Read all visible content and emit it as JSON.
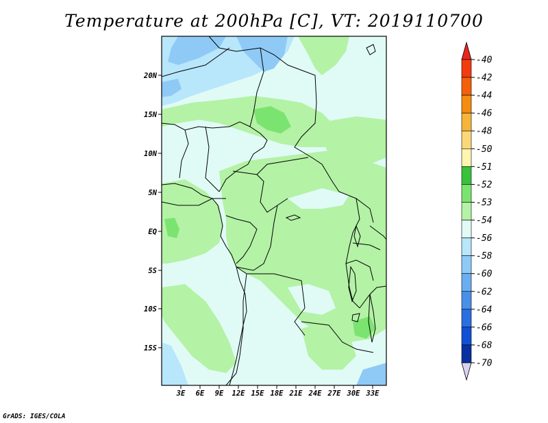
{
  "title": "Temperature at 200hPa [C], VT: 2019110700",
  "credit": "GrADS: IGES/COLA",
  "map": {
    "lat_labels": [
      "20N",
      "15N",
      "10N",
      "5N",
      "EQ",
      "5S",
      "10S",
      "15S"
    ],
    "lon_labels": [
      "3E",
      "6E",
      "9E",
      "12E",
      "15E",
      "18E",
      "21E",
      "24E",
      "27E",
      "30E",
      "33E"
    ]
  },
  "colorbar": {
    "levels": [
      "-40",
      "-42",
      "-44",
      "-46",
      "-48",
      "-50",
      "-51",
      "-52",
      "-53",
      "-54",
      "-56",
      "-58",
      "-60",
      "-62",
      "-64",
      "-66",
      "-68",
      "-70"
    ],
    "colors": {
      "top_triangle": "#e8261c",
      "bottom_triangle": "#dcd2f0",
      "bins": [
        "#f23b0e",
        "#f4600a",
        "#f48d12",
        "#f7b43a",
        "#fbd77a",
        "#fdf5b0",
        "#38c23a",
        "#7be470",
        "#b4f2a6",
        "#e0fbf6",
        "#b8e6fb",
        "#8fcaf7",
        "#6aaef2",
        "#4a8fe8",
        "#2a6ee2",
        "#1150d6",
        "#08309e"
      ]
    }
  },
  "fills": {
    "light_cyan": "#e0fbf6",
    "light_green": "#b4f2a6",
    "mid_green": "#7be470",
    "green": "#38c23a",
    "light_blue": "#b8e6fb",
    "blue": "#8fcaf7"
  }
}
